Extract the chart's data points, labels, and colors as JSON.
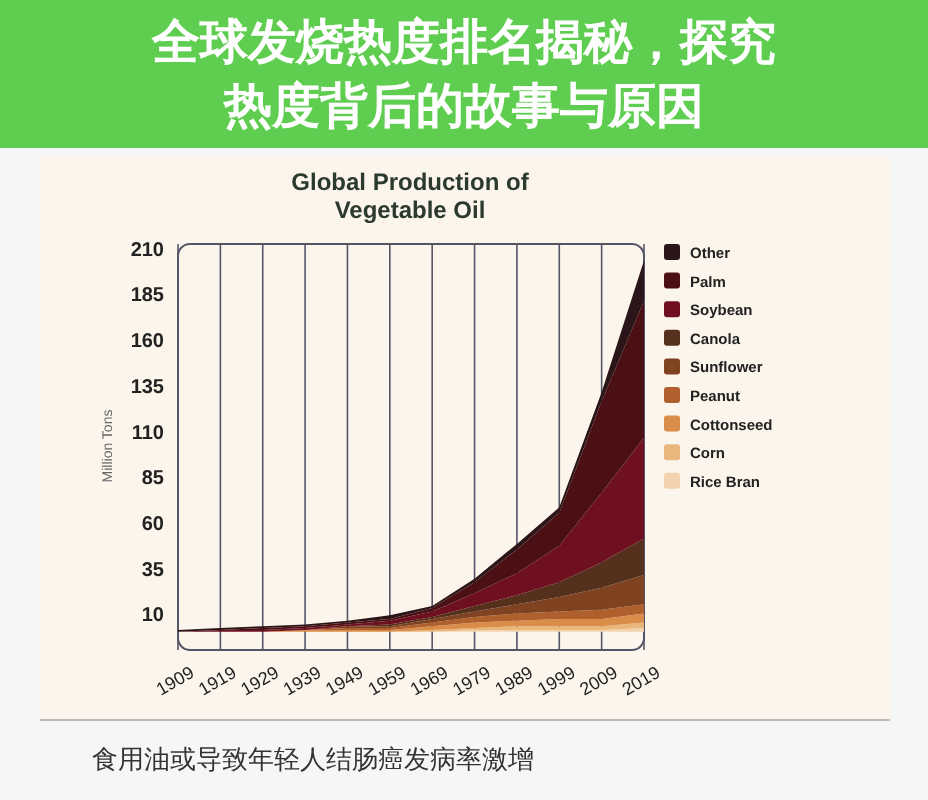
{
  "chart_data": {
    "type": "area",
    "stacked": true,
    "title": "Global Production of Vegetable Oil",
    "ylabel": "Million Tons",
    "x": [
      1909,
      1919,
      1929,
      1939,
      1949,
      1959,
      1969,
      1979,
      1989,
      1999,
      2009,
      2019
    ],
    "series": [
      {
        "name": "Rice Bran",
        "color": "#f2d3ad",
        "values": [
          0,
          0,
          0,
          0,
          0,
          0,
          0,
          1,
          1,
          1,
          1,
          2
        ]
      },
      {
        "name": "Corn",
        "color": "#e9b67c",
        "values": [
          0,
          0,
          0,
          0,
          0,
          0,
          1,
          1,
          2,
          2,
          2,
          3
        ]
      },
      {
        "name": "Cottonseed",
        "color": "#d98d48",
        "values": [
          0,
          0,
          0,
          1,
          1,
          1,
          2,
          3,
          3,
          4,
          4,
          5
        ]
      },
      {
        "name": "Peanut",
        "color": "#b0602c",
        "values": [
          0,
          0,
          0,
          0,
          1,
          1,
          2,
          3,
          4,
          4,
          5,
          5
        ]
      },
      {
        "name": "Sunflower",
        "color": "#7f4322",
        "values": [
          0,
          0,
          0,
          0,
          1,
          1,
          2,
          3,
          5,
          8,
          12,
          16
        ]
      },
      {
        "name": "Canola",
        "color": "#55301c",
        "values": [
          0,
          0,
          0,
          0,
          0,
          1,
          1,
          3,
          5,
          8,
          14,
          20
        ]
      },
      {
        "name": "Soybean",
        "color": "#6e1020",
        "values": [
          0,
          1,
          1,
          1,
          1,
          2,
          3,
          7,
          12,
          20,
          38,
          55
        ]
      },
      {
        "name": "Palm",
        "color": "#4b1014",
        "values": [
          0,
          0,
          1,
          1,
          1,
          1,
          2,
          6,
          13,
          18,
          50,
          75
        ]
      },
      {
        "name": "Other",
        "color": "#2b1518",
        "values": [
          1,
          1,
          1,
          1,
          1,
          2,
          1,
          2,
          3,
          3,
          5,
          22
        ]
      }
    ],
    "ylim": [
      -10,
      212
    ],
    "yticks": [
      10,
      35,
      60,
      85,
      110,
      135,
      160,
      185,
      210
    ],
    "xlim": [
      1909,
      2019
    ],
    "xticks": [
      1909,
      1919,
      1929,
      1939,
      1949,
      1959,
      1969,
      1979,
      1989,
      1999,
      2009,
      2019
    ],
    "grid": "x",
    "legend": "right",
    "annotations": [
      "全球发烧热度排名揭秘，探究热度背后的故事与原因",
      "食用油或导致年轻人结肠癌发病率激增"
    ]
  }
}
